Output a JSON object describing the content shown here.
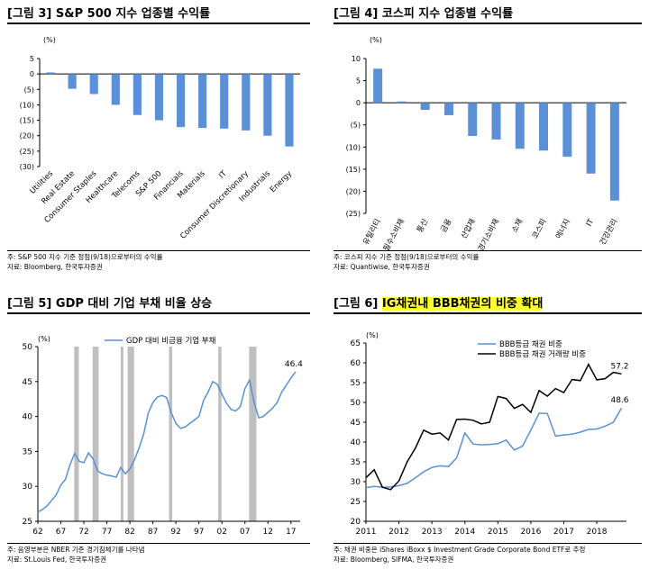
{
  "panels": [
    {
      "title_prefix": "[그림 3]",
      "title": "S&P 500 지수 업종별 수익률",
      "notes": [
        "주: S&P 500 지수 기준 정점(9/18)으로부터의 수익률",
        "자료: Bloomberg, 한국투자증권"
      ]
    },
    {
      "title_prefix": "[그림 4]",
      "title": "코스피 지수 업종별 수익률",
      "notes": [
        "주: 코스피 지수 기준 정점(9/18)으로부터의 수익률",
        "자료: Quantiwise, 한국투자증권"
      ]
    },
    {
      "title_prefix": "[그림 5]",
      "title": "GDP 대비 기업 부채 비율 상승",
      "notes": [
        "주: 음영부분은 NBER 기준 경기침체기를 나타냄",
        "자료: St.Louis Fed, 한국투자증권"
      ]
    },
    {
      "title_prefix": "[그림 6]",
      "title": "IG채권내 BBB채권의 비중 확대",
      "notes": [
        "주: 채권 비중은 iShares iBoxx $ Investment Grade Corporate Bond ETF로 추정",
        "자료: Bloomberg, SIFMA, 한국투자증권"
      ]
    }
  ],
  "chart_data": [
    {
      "type": "bar",
      "unit_label": "(%)",
      "categories": [
        "Utilities",
        "Real Estate",
        "Consumer Staples",
        "Healthcare",
        "Telecoms",
        "S&P 500",
        "Financials",
        "Materials",
        "IT",
        "Consumer Discretionary",
        "Industrials",
        "Energy"
      ],
      "values": [
        0.5,
        -4.8,
        -6.5,
        -10,
        -13.3,
        -15,
        -17.2,
        -17.5,
        -17.7,
        -18.3,
        -20,
        -23.5
      ],
      "ylim": [
        -30,
        5
      ],
      "yticks": [
        5,
        0,
        -5,
        -10,
        -15,
        -20,
        -25,
        -30
      ],
      "ytick_labels": [
        "5",
        "0",
        "(5)",
        "(10)",
        "(15)",
        "(20)",
        "(25)",
        "(30)"
      ],
      "bar_color": "#5b8fd6",
      "grid": false
    },
    {
      "type": "bar",
      "unit_label": "(%)",
      "categories": [
        "유틸리티",
        "필수소비재",
        "통신",
        "금융",
        "산업재",
        "경기소비재",
        "소재",
        "코스피",
        "에너지",
        "IT",
        "건강관리"
      ],
      "values": [
        7.7,
        0.3,
        -1.6,
        -2.8,
        -7.5,
        -8.3,
        -10.4,
        -10.8,
        -12.2,
        -16,
        -22.1
      ],
      "ylim": [
        -25,
        10
      ],
      "yticks": [
        10,
        5,
        0,
        -5,
        -10,
        -15,
        -20,
        -25
      ],
      "ytick_labels": [
        "10",
        "5",
        "0",
        "(5)",
        "(10)",
        "(15)",
        "(20)",
        "(25)"
      ],
      "bar_color": "#5b8fd6",
      "grid": false
    },
    {
      "type": "line",
      "unit_label": "(%)",
      "xlim": [
        1962,
        2019
      ],
      "ylim": [
        25,
        50
      ],
      "yticks": [
        25,
        30,
        35,
        40,
        45,
        50
      ],
      "xticks": [
        1962,
        1967,
        1972,
        1977,
        1982,
        1987,
        1992,
        1997,
        2002,
        2007,
        2012,
        2017
      ],
      "xtick_labels": [
        "62",
        "67",
        "72",
        "77",
        "82",
        "87",
        "92",
        "97",
        "02",
        "07",
        "12",
        "17"
      ],
      "recessions": [
        [
          1969.9,
          1970.9
        ],
        [
          1973.9,
          1975.2
        ],
        [
          1980.0,
          1980.5
        ],
        [
          1981.5,
          1982.9
        ],
        [
          1990.5,
          1991.2
        ],
        [
          2001.2,
          2001.9
        ],
        [
          2007.9,
          2009.5
        ]
      ],
      "recession_color": "#bfbfbf",
      "series": [
        {
          "name": "GDP 대비 비금융 기업 부채",
          "color": "#5b8fd6",
          "end_label": "46.4",
          "x": [
            1962,
            1963,
            1964,
            1965,
            1966,
            1967,
            1968,
            1969,
            1970,
            1971,
            1972,
            1973,
            1974,
            1975,
            1976,
            1977,
            1978,
            1979,
            1980,
            1981,
            1982,
            1983,
            1984,
            1985,
            1986,
            1987,
            1988,
            1989,
            1990,
            1991,
            1992,
            1993,
            1994,
            1995,
            1996,
            1997,
            1998,
            1999,
            2000,
            2001,
            2002,
            2003,
            2004,
            2005,
            2006,
            2007,
            2008,
            2009,
            2010,
            2011,
            2012,
            2013,
            2014,
            2015,
            2016,
            2017,
            2018
          ],
          "y": [
            26.3,
            26.7,
            27.2,
            28.0,
            28.8,
            30.2,
            31.0,
            33.1,
            34.7,
            33.6,
            33.4,
            34.8,
            33.9,
            32.2,
            31.8,
            31.6,
            31.5,
            31.3,
            32.7,
            31.8,
            32.5,
            33.8,
            35.5,
            37.5,
            40.5,
            42.0,
            42.8,
            43.0,
            42.7,
            40.5,
            39.0,
            38.3,
            38.5,
            39.0,
            39.5,
            40.0,
            42.3,
            43.5,
            45.0,
            44.6,
            43.2,
            41.9,
            41.0,
            40.8,
            41.4,
            44.0,
            45.2,
            42.0,
            39.8,
            40.0,
            40.6,
            41.2,
            42.0,
            43.5,
            44.5,
            45.5,
            46.4
          ]
        }
      ],
      "grid": false
    },
    {
      "type": "line",
      "unit_label": "(%)",
      "xlim": [
        2011,
        2018.9
      ],
      "ylim": [
        20,
        65
      ],
      "yticks": [
        20,
        25,
        30,
        35,
        40,
        45,
        50,
        55,
        60,
        65
      ],
      "xticks": [
        2011,
        2012,
        2013,
        2014,
        2015,
        2016,
        2017,
        2018
      ],
      "xtick_labels": [
        "2011",
        "2012",
        "2013",
        "2014",
        "2015",
        "2016",
        "2017",
        "2018"
      ],
      "series": [
        {
          "name": "BBB등급 채권 비중",
          "color": "#5b8fd6",
          "end_label": "48.6",
          "x": [
            2011.0,
            2011.25,
            2011.5,
            2011.75,
            2012.0,
            2012.25,
            2012.5,
            2012.75,
            2013.0,
            2013.25,
            2013.5,
            2013.75,
            2014.0,
            2014.25,
            2014.5,
            2014.75,
            2015.0,
            2015.25,
            2015.5,
            2015.75,
            2016.0,
            2016.25,
            2016.5,
            2016.75,
            2017.0,
            2017.25,
            2017.5,
            2017.75,
            2018.0,
            2018.25,
            2018.5,
            2018.75
          ],
          "y": [
            28.5,
            28.8,
            28.6,
            28.7,
            29.0,
            29.6,
            31.0,
            32.5,
            33.6,
            34.0,
            33.8,
            36.0,
            42.3,
            39.5,
            39.3,
            39.4,
            39.6,
            40.5,
            38.0,
            39.0,
            43.0,
            47.3,
            47.2,
            41.5,
            41.8,
            42.0,
            42.5,
            43.2,
            43.3,
            44.0,
            45.0,
            48.6
          ]
        },
        {
          "name": "BBB등급 채권 거래량 비중",
          "color": "#000000",
          "end_label": "57.2",
          "x": [
            2011.0,
            2011.25,
            2011.5,
            2011.75,
            2012.0,
            2012.25,
            2012.5,
            2012.75,
            2013.0,
            2013.25,
            2013.5,
            2013.75,
            2014.0,
            2014.25,
            2014.5,
            2014.75,
            2015.0,
            2015.25,
            2015.5,
            2015.75,
            2016.0,
            2016.25,
            2016.5,
            2016.75,
            2017.0,
            2017.25,
            2017.5,
            2017.75,
            2018.0,
            2018.25,
            2018.5,
            2018.75
          ],
          "y": [
            31.0,
            33.0,
            28.6,
            28.0,
            30.2,
            35.0,
            38.5,
            43.0,
            42.0,
            42.3,
            40.5,
            45.7,
            45.8,
            45.5,
            44.6,
            45.0,
            51.5,
            51.0,
            48.5,
            49.5,
            47.5,
            53.0,
            51.6,
            53.5,
            52.5,
            55.8,
            55.5,
            59.6,
            55.7,
            56.0,
            57.6,
            57.2
          ]
        }
      ],
      "grid": false
    }
  ]
}
